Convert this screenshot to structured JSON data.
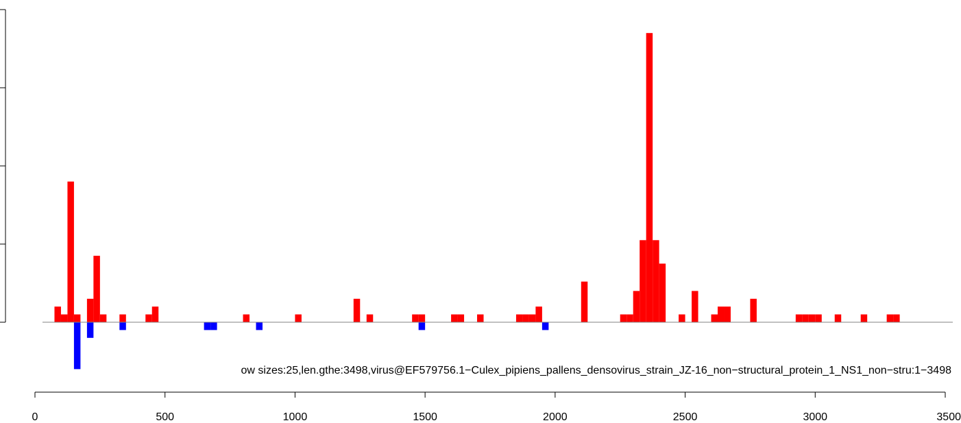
{
  "chart_data": {
    "type": "bar",
    "title": "",
    "xlabel": "",
    "ylabel": "",
    "subtitle_line": "ow sizes:25,len.gthe:3498,virus@EF579756.1−Culex_pipiens_pallens_densovirus_strain_JZ-16_non−structural_protein_1_NS1_non−stru:1−3498",
    "bin_width": 25,
    "xlim": [
      0,
      3500
    ],
    "ylim": [
      -7,
      36
    ],
    "x_ticks": [
      "0",
      "500",
      "1000",
      "1500",
      "2000",
      "2500",
      "3000",
      "3500"
    ],
    "grid": false,
    "legend": "none",
    "colors": {
      "positive": "#ff0000",
      "negative": "#0000ff",
      "axis": "#000000",
      "baseline": "#808080"
    },
    "series": [
      {
        "name": "positive",
        "values": [
          {
            "x": 75,
            "y": 2
          },
          {
            "x": 100,
            "y": 1
          },
          {
            "x": 125,
            "y": 18
          },
          {
            "x": 150,
            "y": 1
          },
          {
            "x": 200,
            "y": 3
          },
          {
            "x": 225,
            "y": 8.5
          },
          {
            "x": 250,
            "y": 1
          },
          {
            "x": 325,
            "y": 1
          },
          {
            "x": 425,
            "y": 1
          },
          {
            "x": 450,
            "y": 2
          },
          {
            "x": 800,
            "y": 1
          },
          {
            "x": 1000,
            "y": 1
          },
          {
            "x": 1225,
            "y": 3
          },
          {
            "x": 1275,
            "y": 1
          },
          {
            "x": 1450,
            "y": 1
          },
          {
            "x": 1475,
            "y": 1
          },
          {
            "x": 1600,
            "y": 1
          },
          {
            "x": 1625,
            "y": 1
          },
          {
            "x": 1700,
            "y": 1
          },
          {
            "x": 1850,
            "y": 1
          },
          {
            "x": 1875,
            "y": 1
          },
          {
            "x": 1900,
            "y": 1
          },
          {
            "x": 1925,
            "y": 2
          },
          {
            "x": 2100,
            "y": 5.2
          },
          {
            "x": 2250,
            "y": 1
          },
          {
            "x": 2275,
            "y": 1
          },
          {
            "x": 2300,
            "y": 4
          },
          {
            "x": 2325,
            "y": 10.5
          },
          {
            "x": 2350,
            "y": 37
          },
          {
            "x": 2375,
            "y": 10.5
          },
          {
            "x": 2400,
            "y": 7.5
          },
          {
            "x": 2475,
            "y": 1
          },
          {
            "x": 2525,
            "y": 4
          },
          {
            "x": 2600,
            "y": 1
          },
          {
            "x": 2625,
            "y": 2
          },
          {
            "x": 2650,
            "y": 2
          },
          {
            "x": 2750,
            "y": 3
          },
          {
            "x": 2925,
            "y": 1
          },
          {
            "x": 2950,
            "y": 1
          },
          {
            "x": 2975,
            "y": 1
          },
          {
            "x": 3000,
            "y": 1
          },
          {
            "x": 3075,
            "y": 1
          },
          {
            "x": 3175,
            "y": 1
          },
          {
            "x": 3275,
            "y": 1
          },
          {
            "x": 3300,
            "y": 1
          }
        ]
      },
      {
        "name": "negative",
        "values": [
          {
            "x": 150,
            "y": -6
          },
          {
            "x": 200,
            "y": -2
          },
          {
            "x": 325,
            "y": -1
          },
          {
            "x": 650,
            "y": -1
          },
          {
            "x": 675,
            "y": -1
          },
          {
            "x": 850,
            "y": -1
          },
          {
            "x": 1475,
            "y": -1
          },
          {
            "x": 1950,
            "y": -1
          }
        ]
      }
    ]
  }
}
